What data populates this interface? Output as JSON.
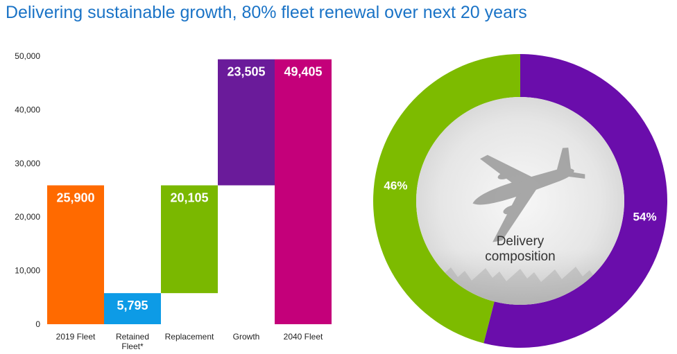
{
  "title": "Delivering sustainable growth, 80% fleet renewal over next 20 years",
  "chart_data": [
    {
      "type": "bar",
      "subtype": "waterfall",
      "categories": [
        [
          "2019 Fleet"
        ],
        [
          "Retained",
          "Fleet*"
        ],
        [
          "Replacement"
        ],
        [
          "Growth"
        ],
        [
          "2040 Fleet"
        ]
      ],
      "values": [
        25900,
        5795,
        20105,
        23505,
        49405
      ],
      "value_labels": [
        "25,900",
        "5,795",
        "20,105",
        "23,505",
        "49,405"
      ],
      "bases": [
        0,
        0,
        5795,
        25900,
        0
      ],
      "colors": [
        "#ff6a00",
        "#0d9be6",
        "#7ab800",
        "#6a1b9a",
        "#c4007a"
      ],
      "yticks": [
        "0",
        "10,000",
        "20,000",
        "30,000",
        "40,000",
        "50,000"
      ],
      "ylim": [
        0,
        50000
      ],
      "grid": false,
      "legend": "none"
    },
    {
      "type": "pie",
      "subtype": "donut",
      "slices": [
        {
          "label": "54%",
          "value": 54,
          "color": "#6a0dab"
        },
        {
          "label": "46%",
          "value": 46,
          "color": "#7dbb00"
        }
      ],
      "center_text": [
        "Delivery",
        "composition"
      ],
      "center_icon": "airplane-icon"
    }
  ]
}
